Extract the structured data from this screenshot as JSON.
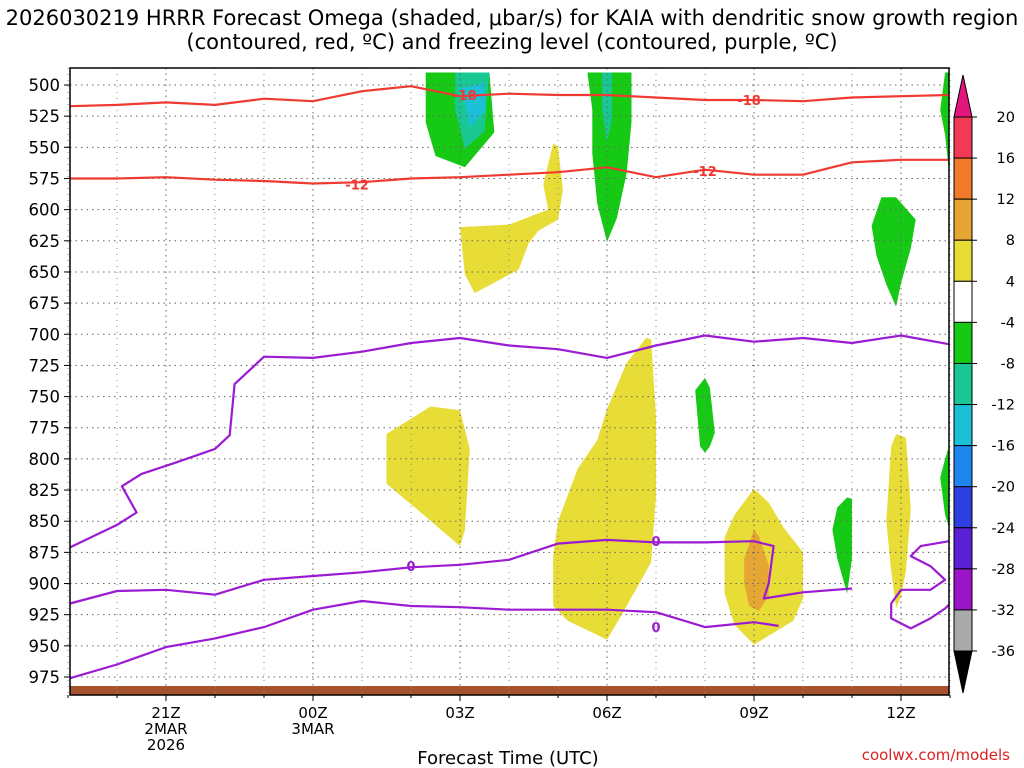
{
  "title": "2026030219 HRRR Forecast Omega (shaded, μbar/s) for KAIA with dendritic snow growth region (contoured, red, ºC) and freezing level (contoured, purple, ºC)",
  "credit": "coolwx.com/models",
  "chart_data": {
    "type": "area",
    "xlabel": "Forecast Time (UTC)",
    "x_ticks": [
      {
        "t": 21,
        "lines": [
          "21Z",
          "2MAR",
          "2026"
        ]
      },
      {
        "t": 24,
        "lines": [
          "00Z",
          "3MAR"
        ]
      },
      {
        "t": 27,
        "lines": [
          "03Z"
        ]
      },
      {
        "t": 30,
        "lines": [
          "06Z"
        ]
      },
      {
        "t": 33,
        "lines": [
          "09Z"
        ]
      },
      {
        "t": 36,
        "lines": [
          "12Z"
        ]
      }
    ],
    "x_range_hours": [
      19,
      37
    ],
    "y_ticks": [
      500,
      525,
      550,
      575,
      600,
      625,
      650,
      675,
      700,
      725,
      750,
      775,
      800,
      825,
      850,
      875,
      900,
      925,
      950,
      975
    ],
    "y_range_hpa": [
      490,
      985
    ],
    "grid": true,
    "colorbar": {
      "labels": [
        20,
        16,
        12,
        8,
        4,
        -4,
        -8,
        -12,
        -16,
        -20,
        -24,
        -28,
        -32,
        -36
      ],
      "colors": [
        "#f23a55",
        "#f07a2a",
        "#e6a634",
        "#e8dc37",
        "#ffffff",
        "#15c915",
        "#18c792",
        "#1bbfd6",
        "#1c85ee",
        "#2d3fe0",
        "#5b1fd4",
        "#9a14c8",
        "#a9a9a9"
      ]
    },
    "contours": [
      {
        "value": -18,
        "color": "#ee3a32",
        "label": "-18",
        "points": [
          [
            19,
            517
          ],
          [
            20,
            516
          ],
          [
            21,
            514
          ],
          [
            22,
            516
          ],
          [
            23,
            511
          ],
          [
            24,
            513
          ],
          [
            25,
            505
          ],
          [
            26,
            501
          ],
          [
            27,
            509
          ],
          [
            28,
            507
          ],
          [
            29,
            508
          ],
          [
            30,
            508
          ],
          [
            31,
            510
          ],
          [
            32,
            512
          ],
          [
            33,
            512
          ],
          [
            34,
            513
          ],
          [
            35,
            510
          ],
          [
            36,
            509
          ],
          [
            37,
            508
          ]
        ],
        "label_at": [
          [
            27.1,
            508
          ],
          [
            32.9,
            512
          ]
        ]
      },
      {
        "value": -12,
        "color": "#ee3a32",
        "label": "-12",
        "points": [
          [
            19,
            575
          ],
          [
            20,
            575
          ],
          [
            21,
            574
          ],
          [
            22,
            576
          ],
          [
            23,
            577
          ],
          [
            24,
            579
          ],
          [
            25,
            578
          ],
          [
            26,
            575
          ],
          [
            27,
            574
          ],
          [
            28,
            572
          ],
          [
            29,
            570
          ],
          [
            30,
            566
          ],
          [
            31,
            574
          ],
          [
            32,
            568
          ],
          [
            33,
            572
          ],
          [
            34,
            572
          ],
          [
            35,
            562
          ],
          [
            36,
            560
          ],
          [
            37,
            560
          ]
        ],
        "label_at": [
          [
            24.9,
            580
          ],
          [
            32,
            569
          ]
        ]
      },
      {
        "value": 0,
        "color": "#9b1bd2",
        "label": "0",
        "points": [
          [
            19,
            871
          ],
          [
            20,
            853
          ],
          [
            20.4,
            843
          ],
          [
            20.1,
            822
          ],
          [
            20.5,
            812
          ],
          [
            21.2,
            803
          ],
          [
            22,
            792
          ],
          [
            22.3,
            781
          ],
          [
            22.4,
            740
          ],
          [
            23,
            718
          ],
          [
            24,
            719
          ],
          [
            25,
            714
          ],
          [
            26,
            707
          ],
          [
            27,
            703
          ],
          [
            28,
            709
          ],
          [
            29,
            712
          ],
          [
            30,
            719
          ],
          [
            31,
            709
          ],
          [
            32,
            701
          ],
          [
            33,
            706
          ],
          [
            34,
            703
          ],
          [
            35,
            707
          ],
          [
            36,
            701
          ],
          [
            37,
            708
          ]
        ],
        "label_at": []
      },
      {
        "value": 0,
        "color": "#9b1bd2",
        "label": "0",
        "points": [
          [
            19,
            916
          ],
          [
            20,
            906
          ],
          [
            21,
            905
          ],
          [
            22,
            909
          ],
          [
            23,
            897
          ],
          [
            24,
            894
          ],
          [
            25,
            891
          ],
          [
            26,
            887
          ],
          [
            27,
            885
          ],
          [
            28,
            881
          ],
          [
            29,
            868
          ],
          [
            30,
            865
          ],
          [
            31,
            867
          ],
          [
            32,
            867
          ],
          [
            33,
            866
          ],
          [
            33.4,
            870
          ],
          [
            33.3,
            900
          ],
          [
            33.2,
            912
          ],
          [
            34,
            907
          ],
          [
            35,
            904
          ]
        ],
        "label_at": [
          [
            26.0,
            886
          ],
          [
            31.0,
            866
          ]
        ]
      },
      {
        "value": 0,
        "color": "#9b1bd2",
        "label": "0",
        "points": [
          [
            19,
            976
          ],
          [
            20,
            965
          ],
          [
            21,
            951
          ],
          [
            22,
            944
          ],
          [
            23,
            935
          ],
          [
            24,
            921
          ],
          [
            25,
            914
          ],
          [
            26,
            918
          ],
          [
            27,
            919
          ],
          [
            28,
            921
          ],
          [
            29,
            921
          ],
          [
            30,
            921
          ],
          [
            31,
            923
          ],
          [
            32,
            935
          ],
          [
            33,
            931
          ],
          [
            33.5,
            934
          ]
        ],
        "label_at": [
          [
            31.0,
            935
          ]
        ]
      },
      {
        "value": 0,
        "color": "#9b1bd2",
        "label": "0",
        "points": [
          [
            37,
            866
          ],
          [
            36.4,
            870
          ],
          [
            36.2,
            878
          ],
          [
            36.6,
            886
          ],
          [
            36.9,
            897
          ],
          [
            36.6,
            905
          ],
          [
            36.0,
            905
          ],
          [
            35.8,
            916
          ],
          [
            35.8,
            928
          ],
          [
            36.2,
            936
          ],
          [
            36.6,
            928
          ],
          [
            36.9,
            920
          ],
          [
            37,
            917
          ]
        ],
        "label_at": []
      }
    ],
    "omega_regions": [
      {
        "color": "#15c915",
        "points": [
          [
            26.3,
            490
          ],
          [
            27.6,
            490
          ],
          [
            27.7,
            538
          ],
          [
            27.1,
            566
          ],
          [
            26.5,
            557
          ],
          [
            26.3,
            530
          ]
        ]
      },
      {
        "color": "#18c792",
        "points": [
          [
            26.9,
            490
          ],
          [
            27.6,
            490
          ],
          [
            27.5,
            537
          ],
          [
            27.1,
            551
          ],
          [
            26.9,
            520
          ]
        ]
      },
      {
        "color": "#1bbfd6",
        "points": [
          [
            27.0,
            503
          ],
          [
            27.5,
            498
          ],
          [
            27.5,
            521
          ],
          [
            27.2,
            534
          ],
          [
            27.1,
            515
          ]
        ]
      },
      {
        "color": "#15c915",
        "points": [
          [
            29.6,
            490
          ],
          [
            30.5,
            490
          ],
          [
            30.5,
            530
          ],
          [
            30.4,
            571
          ],
          [
            30.2,
            607
          ],
          [
            30.0,
            626
          ],
          [
            29.8,
            595
          ],
          [
            29.7,
            555
          ],
          [
            29.7,
            520
          ]
        ]
      },
      {
        "color": "#18c792",
        "points": [
          [
            29.9,
            490
          ],
          [
            30.1,
            490
          ],
          [
            30.1,
            528
          ],
          [
            30.0,
            546
          ],
          [
            29.9,
            520
          ]
        ]
      },
      {
        "color": "#e8dc37",
        "points": [
          [
            28.9,
            547
          ],
          [
            29.0,
            549
          ],
          [
            29.1,
            584
          ],
          [
            29.0,
            608
          ],
          [
            28.6,
            617
          ],
          [
            28.4,
            627
          ],
          [
            28.2,
            648
          ],
          [
            27.3,
            667
          ],
          [
            27.1,
            652
          ],
          [
            27.0,
            614
          ],
          [
            28.0,
            612
          ],
          [
            28.8,
            600
          ],
          [
            28.7,
            580
          ]
        ]
      },
      {
        "color": "#15c915",
        "points": [
          [
            35.6,
            590
          ],
          [
            35.9,
            590
          ],
          [
            36.3,
            608
          ],
          [
            36.2,
            631
          ],
          [
            36.0,
            659
          ],
          [
            35.9,
            678
          ],
          [
            35.7,
            660
          ],
          [
            35.5,
            637
          ],
          [
            35.4,
            613
          ]
        ]
      },
      {
        "color": "#15c915",
        "points": [
          [
            36.9,
            490
          ],
          [
            37,
            490
          ],
          [
            37,
            570
          ],
          [
            36.9,
            540
          ],
          [
            36.8,
            520
          ]
        ]
      },
      {
        "color": "#e8dc37",
        "points": [
          [
            26.4,
            758
          ],
          [
            27.0,
            761
          ],
          [
            27.2,
            792
          ],
          [
            27.1,
            857
          ],
          [
            27.0,
            870
          ],
          [
            26.2,
            843
          ],
          [
            25.5,
            820
          ],
          [
            25.5,
            780
          ]
        ]
      },
      {
        "color": "#e8dc37",
        "points": [
          [
            30.8,
            703
          ],
          [
            30.9,
            704
          ],
          [
            31.0,
            767
          ],
          [
            31.0,
            830
          ],
          [
            30.9,
            883
          ],
          [
            30.3,
            925
          ],
          [
            30.0,
            945
          ],
          [
            29.2,
            930
          ],
          [
            28.9,
            918
          ],
          [
            28.9,
            878
          ],
          [
            29.0,
            850
          ],
          [
            29.4,
            808
          ],
          [
            29.8,
            785
          ],
          [
            30.0,
            760
          ],
          [
            30.4,
            723
          ]
        ]
      },
      {
        "color": "#e8dc37",
        "points": [
          [
            33.0,
            824
          ],
          [
            33.3,
            835
          ],
          [
            33.6,
            855
          ],
          [
            34.0,
            875
          ],
          [
            34.0,
            912
          ],
          [
            33.8,
            930
          ],
          [
            33.0,
            949
          ],
          [
            32.6,
            933
          ],
          [
            32.4,
            908
          ],
          [
            32.4,
            863
          ],
          [
            32.6,
            845
          ]
        ]
      },
      {
        "color": "#e6a634",
        "points": [
          [
            33.0,
            857
          ],
          [
            33.1,
            862
          ],
          [
            33.3,
            885
          ],
          [
            33.3,
            910
          ],
          [
            33.1,
            922
          ],
          [
            32.9,
            918
          ],
          [
            32.8,
            900
          ],
          [
            32.8,
            880
          ]
        ]
      },
      {
        "color": "#15c915",
        "points": [
          [
            32.0,
            735
          ],
          [
            32.1,
            743
          ],
          [
            32.2,
            779
          ],
          [
            32.1,
            790
          ],
          [
            32.0,
            795
          ],
          [
            31.9,
            790
          ],
          [
            31.8,
            745
          ]
        ]
      },
      {
        "color": "#15c915",
        "points": [
          [
            34.9,
            831
          ],
          [
            35.0,
            832
          ],
          [
            35.0,
            880
          ],
          [
            34.9,
            908
          ],
          [
            34.7,
            880
          ],
          [
            34.6,
            857
          ],
          [
            34.7,
            839
          ]
        ]
      },
      {
        "color": "#e8dc37",
        "points": [
          [
            35.9,
            780
          ],
          [
            36.1,
            783
          ],
          [
            36.2,
            840
          ],
          [
            36.1,
            890
          ],
          [
            36.0,
            910
          ],
          [
            35.9,
            920
          ],
          [
            35.8,
            890
          ],
          [
            35.7,
            850
          ],
          [
            35.8,
            790
          ]
        ]
      },
      {
        "color": "#15c915",
        "points": [
          [
            36.9,
            800
          ],
          [
            37,
            790
          ],
          [
            37,
            855
          ],
          [
            36.9,
            845
          ],
          [
            36.8,
            815
          ]
        ]
      }
    ],
    "terrain": {
      "color": "#a5522d",
      "pressure": 980
    }
  }
}
